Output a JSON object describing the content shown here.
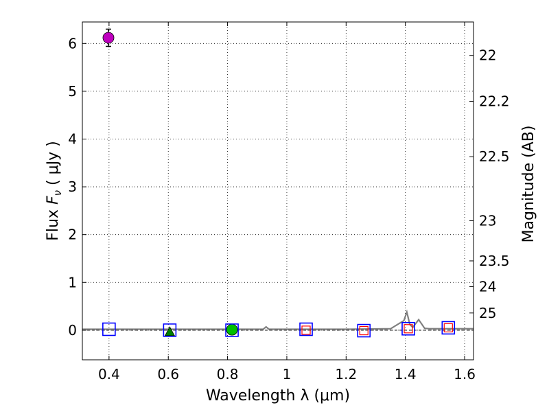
{
  "chart_data": {
    "type": "scatter",
    "xlabel": "Wavelength  λ (μm)",
    "ylabel_prefix": "Flux  ",
    "ylabel_symbol": "F",
    "ylabel_sub": "ν",
    "ylabel_suffix": "  ( μJy )",
    "y2label": "Magnitude (AB)",
    "xlim": [
      0.31,
      1.63
    ],
    "ylim": [
      -0.62,
      6.45
    ],
    "grid": true,
    "xticks": [
      {
        "value": 0.4,
        "label": "0.4"
      },
      {
        "value": 0.6,
        "label": "0.6"
      },
      {
        "value": 0.8,
        "label": "0.8"
      },
      {
        "value": 1.0,
        "label": "1"
      },
      {
        "value": 1.2,
        "label": "1.2"
      },
      {
        "value": 1.4,
        "label": "1.4"
      },
      {
        "value": 1.6,
        "label": "1.6"
      }
    ],
    "yticks": [
      {
        "value": 0,
        "label": "0"
      },
      {
        "value": 1,
        "label": "1"
      },
      {
        "value": 2,
        "label": "2"
      },
      {
        "value": 3,
        "label": "3"
      },
      {
        "value": 4,
        "label": "4"
      },
      {
        "value": 5,
        "label": "5"
      },
      {
        "value": 6,
        "label": "6"
      }
    ],
    "magnitude_ticks": [
      {
        "flux": 5.75,
        "label": "22"
      },
      {
        "flux": 4.79,
        "label": "22.2"
      },
      {
        "flux": 3.63,
        "label": "22.5"
      },
      {
        "flux": 2.29,
        "label": "23"
      },
      {
        "flux": 1.45,
        "label": "23.5"
      },
      {
        "flux": 0.91,
        "label": "24"
      },
      {
        "flux": 0.36,
        "label": "25"
      }
    ],
    "model_spectrum": {
      "name": "model SED",
      "color": "#808080",
      "x": [
        0.31,
        0.5,
        0.7,
        0.8,
        0.92,
        0.93,
        0.94,
        1.0,
        1.2,
        1.35,
        1.395,
        1.405,
        1.415,
        1.425,
        1.445,
        1.465,
        1.48,
        1.6,
        1.63
      ],
      "y": [
        0.02,
        0.02,
        0.02,
        0.02,
        0.02,
        0.07,
        0.02,
        0.02,
        0.02,
        0.03,
        0.2,
        0.38,
        0.12,
        0.06,
        0.22,
        0.04,
        0.03,
        0.03,
        0.03
      ]
    },
    "model_photometry": {
      "name": "model flux (open squares)",
      "color": "#0000ff",
      "x": [
        0.4,
        0.605,
        0.815,
        1.065,
        1.26,
        1.41,
        1.545
      ],
      "y": [
        0.02,
        0.0,
        0.0,
        0.02,
        -0.01,
        0.03,
        0.05
      ]
    },
    "inner_squares": {
      "name": "observed (red squares)",
      "color": "#ff0000",
      "x": [
        1.065,
        1.26,
        1.41,
        1.545
      ],
      "y": [
        0.0,
        -0.01,
        0.03,
        0.05
      ]
    },
    "detection_points": [
      {
        "name": "magenta point",
        "x": 0.398,
        "y": 6.12,
        "err": 0.18,
        "color": "#bf00bf",
        "shape": "circle"
      },
      {
        "name": "green triangle",
        "x": 0.605,
        "y": -0.03,
        "err": 0,
        "color": "#008000",
        "shape": "triangle"
      },
      {
        "name": "green circle",
        "x": 0.815,
        "y": 0.01,
        "err": 0,
        "color": "#00bf00",
        "shape": "circle"
      }
    ],
    "zero_line_color": "#000000"
  }
}
